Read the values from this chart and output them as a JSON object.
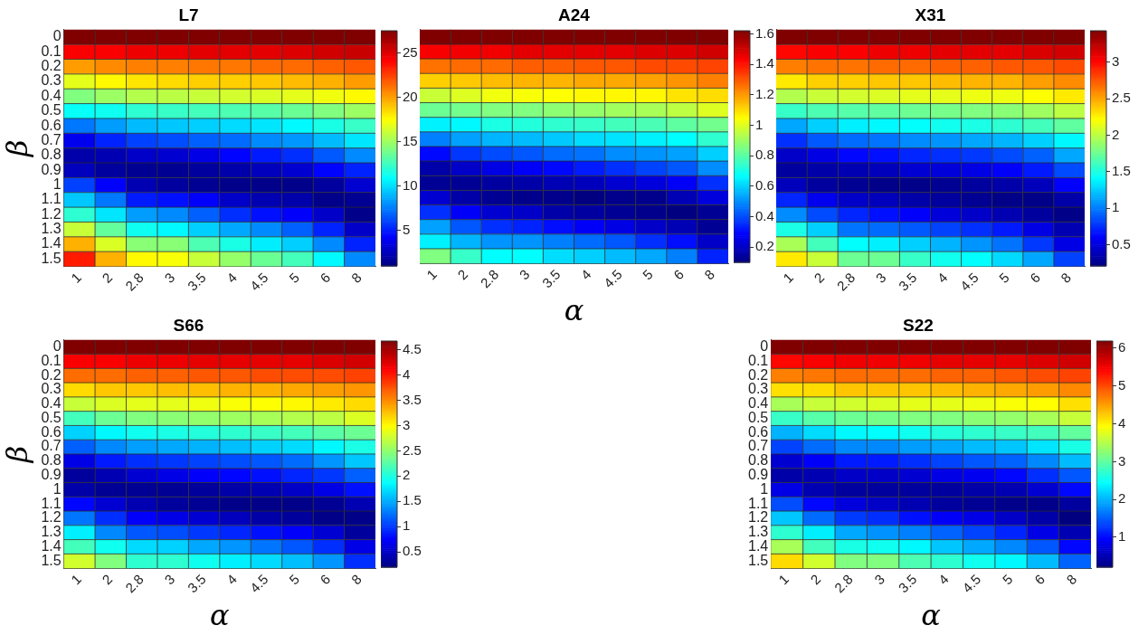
{
  "chart_data": [
    {
      "type": "heatmap",
      "title": "L7",
      "ylabel": "β",
      "categories": [
        "1",
        "2",
        "2.8",
        "3",
        "3.5",
        "4",
        "4.5",
        "5",
        "6",
        "8"
      ],
      "y_categories": [
        "0",
        "0.1",
        "0.2",
        "0.3",
        "0.4",
        "0.5",
        "0.6",
        "0.7",
        "0.8",
        "0.9",
        "1",
        "1.1",
        "1.2",
        "1.3",
        "1.4",
        "1.5"
      ],
      "clim": [
        1,
        27.5
      ],
      "cticks": [
        5,
        10,
        15,
        20,
        25
      ],
      "cells": [
        [
          27.5,
          27.5,
          27.5,
          27.5,
          27.5,
          27.5,
          27.5,
          27.5,
          27.5,
          27.5
        ],
        [
          24.3,
          24.3,
          24.6,
          24.6,
          24.9,
          24.9,
          24.9,
          25.1,
          25.4,
          25.6
        ],
        [
          20.1,
          20.6,
          20.9,
          20.9,
          21.1,
          21.1,
          21.4,
          21.4,
          21.7,
          21.9
        ],
        [
          16.9,
          17.7,
          18.2,
          18.5,
          18.8,
          18.8,
          19.0,
          19.3,
          19.6,
          20.1
        ],
        [
          14.3,
          15.0,
          15.6,
          15.8,
          16.1,
          16.4,
          16.6,
          16.9,
          17.2,
          17.7
        ],
        [
          11.1,
          11.3,
          12.1,
          12.4,
          12.7,
          12.9,
          13.2,
          13.7,
          14.3,
          15.0
        ],
        [
          7.4,
          8.4,
          9.2,
          9.5,
          9.7,
          10.0,
          10.3,
          10.8,
          11.6,
          12.4
        ],
        [
          3.9,
          5.2,
          6.0,
          6.3,
          6.8,
          7.1,
          7.9,
          8.2,
          9.2,
          10.3
        ],
        [
          2.1,
          2.3,
          2.9,
          3.1,
          3.7,
          4.4,
          5.0,
          5.5,
          6.6,
          7.9
        ],
        [
          2.6,
          1.8,
          1.5,
          1.5,
          1.8,
          2.1,
          2.6,
          3.1,
          4.4,
          5.2
        ],
        [
          6.0,
          4.2,
          2.3,
          1.8,
          1.5,
          1.3,
          1.3,
          1.3,
          1.8,
          3.1
        ],
        [
          9.5,
          7.4,
          5.0,
          4.7,
          4.2,
          2.9,
          2.3,
          2.1,
          1.3,
          1.5
        ],
        [
          12.1,
          10.3,
          8.4,
          7.9,
          6.8,
          5.5,
          4.7,
          4.2,
          2.9,
          1.3
        ],
        [
          16.1,
          13.5,
          11.3,
          10.8,
          9.7,
          8.7,
          7.9,
          6.8,
          5.2,
          2.9
        ],
        [
          19.6,
          16.6,
          14.5,
          14.5,
          12.9,
          11.6,
          10.5,
          9.7,
          7.9,
          5.2
        ],
        [
          23.5,
          19.6,
          17.7,
          17.4,
          16.1,
          14.8,
          13.7,
          12.7,
          10.8,
          7.9
        ]
      ]
    },
    {
      "type": "heatmap",
      "title": "A24",
      "xlabel": "α",
      "tick_labels": "x",
      "categories": [
        "1",
        "2",
        "2.8",
        "3",
        "3.5",
        "4",
        "4.5",
        "5",
        "6",
        "8"
      ],
      "y_categories": [
        "0",
        "0.1",
        "0.2",
        "0.3",
        "0.4",
        "0.5",
        "0.6",
        "0.7",
        "0.8",
        "0.9",
        "1",
        "1.1",
        "1.2",
        "1.3",
        "1.4",
        "1.5"
      ],
      "clim": [
        0.1,
        1.62
      ],
      "cticks": [
        0.2,
        0.4,
        0.6,
        0.8,
        1,
        1.2,
        1.4,
        1.6
      ],
      "cells": [
        [
          1.62,
          1.62,
          1.62,
          1.62,
          1.62,
          1.62,
          1.62,
          1.62,
          1.62,
          1.62
        ],
        [
          1.44,
          1.45,
          1.45,
          1.47,
          1.47,
          1.47,
          1.47,
          1.48,
          1.48,
          1.5
        ],
        [
          1.26,
          1.27,
          1.27,
          1.29,
          1.29,
          1.3,
          1.3,
          1.32,
          1.32,
          1.33
        ],
        [
          1.12,
          1.13,
          1.15,
          1.16,
          1.16,
          1.18,
          1.18,
          1.19,
          1.21,
          1.24
        ],
        [
          0.97,
          1.0,
          1.03,
          1.04,
          1.05,
          1.06,
          1.06,
          1.06,
          1.09,
          1.1
        ],
        [
          0.83,
          0.84,
          0.86,
          0.86,
          0.88,
          0.89,
          0.91,
          0.92,
          0.95,
          1.0
        ],
        [
          0.65,
          0.66,
          0.71,
          0.72,
          0.74,
          0.75,
          0.77,
          0.78,
          0.81,
          0.84
        ],
        [
          0.48,
          0.53,
          0.56,
          0.57,
          0.59,
          0.62,
          0.63,
          0.65,
          0.67,
          0.74
        ],
        [
          0.3,
          0.37,
          0.4,
          0.42,
          0.45,
          0.46,
          0.5,
          0.51,
          0.53,
          0.6
        ],
        [
          0.16,
          0.21,
          0.25,
          0.28,
          0.3,
          0.33,
          0.36,
          0.39,
          0.42,
          0.5
        ],
        [
          0.13,
          0.13,
          0.15,
          0.16,
          0.18,
          0.19,
          0.22,
          0.24,
          0.28,
          0.36
        ],
        [
          0.22,
          0.16,
          0.13,
          0.12,
          0.12,
          0.1,
          0.12,
          0.12,
          0.18,
          0.24
        ],
        [
          0.36,
          0.28,
          0.22,
          0.21,
          0.16,
          0.15,
          0.13,
          0.12,
          0.1,
          0.13
        ],
        [
          0.53,
          0.42,
          0.36,
          0.34,
          0.31,
          0.28,
          0.25,
          0.21,
          0.18,
          0.13
        ],
        [
          0.65,
          0.56,
          0.51,
          0.51,
          0.48,
          0.45,
          0.42,
          0.36,
          0.31,
          0.21
        ],
        [
          0.86,
          0.75,
          0.67,
          0.67,
          0.62,
          0.6,
          0.57,
          0.54,
          0.48,
          0.34
        ]
      ]
    },
    {
      "type": "heatmap",
      "title": "X31",
      "tick_labels": "x",
      "categories": [
        "1",
        "2",
        "2.8",
        "3",
        "3.5",
        "4",
        "4.5",
        "5",
        "6",
        "8"
      ],
      "y_categories": [
        "0",
        "0.1",
        "0.2",
        "0.3",
        "0.4",
        "0.5",
        "0.6",
        "0.7",
        "0.8",
        "0.9",
        "1",
        "1.1",
        "1.2",
        "1.3",
        "1.4",
        "1.5"
      ],
      "clim": [
        0.21,
        3.43
      ],
      "cticks": [
        0.5,
        1,
        1.5,
        2,
        2.5,
        3
      ],
      "cells": [
        [
          3.43,
          3.43,
          3.43,
          3.43,
          3.43,
          3.43,
          3.43,
          3.43,
          3.43,
          3.43
        ],
        [
          3.01,
          3.04,
          3.04,
          3.08,
          3.08,
          3.11,
          3.11,
          3.11,
          3.14,
          3.17
        ],
        [
          2.63,
          2.66,
          2.66,
          2.69,
          2.69,
          2.72,
          2.72,
          2.75,
          2.75,
          2.79
        ],
        [
          2.29,
          2.37,
          2.37,
          2.4,
          2.4,
          2.43,
          2.46,
          2.46,
          2.53,
          2.59
        ],
        [
          1.98,
          2.05,
          2.08,
          2.11,
          2.14,
          2.14,
          2.17,
          2.17,
          2.22,
          2.29
        ],
        [
          1.59,
          1.66,
          1.69,
          1.72,
          1.76,
          1.79,
          1.82,
          1.85,
          1.92,
          2.01
        ],
        [
          1.14,
          1.27,
          1.37,
          1.4,
          1.42,
          1.47,
          1.5,
          1.56,
          1.63,
          1.72
        ],
        [
          0.76,
          0.89,
          0.95,
          0.98,
          1.05,
          1.08,
          1.14,
          1.18,
          1.27,
          1.4
        ],
        [
          0.44,
          0.53,
          0.63,
          0.66,
          0.73,
          0.76,
          0.79,
          0.85,
          0.92,
          1.14
        ],
        [
          0.31,
          0.34,
          0.37,
          0.4,
          0.47,
          0.5,
          0.53,
          0.6,
          0.69,
          0.85
        ],
        [
          0.4,
          0.31,
          0.27,
          0.24,
          0.24,
          0.27,
          0.31,
          0.34,
          0.4,
          0.6
        ],
        [
          0.73,
          0.56,
          0.44,
          0.4,
          0.34,
          0.31,
          0.27,
          0.24,
          0.24,
          0.34
        ],
        [
          1.05,
          0.85,
          0.73,
          0.66,
          0.6,
          0.5,
          0.44,
          0.37,
          0.31,
          0.24
        ],
        [
          1.5,
          1.27,
          0.98,
          0.95,
          0.89,
          0.82,
          0.76,
          0.69,
          0.53,
          0.37
        ],
        [
          1.95,
          1.63,
          1.42,
          1.37,
          1.27,
          1.18,
          1.08,
          0.98,
          0.79,
          0.53
        ],
        [
          2.29,
          2.05,
          1.76,
          1.76,
          1.59,
          1.47,
          1.42,
          1.3,
          1.14,
          0.82
        ]
      ]
    },
    {
      "type": "heatmap",
      "title": "S66",
      "xlabel": "α",
      "ylabel": "β",
      "categories": [
        "1",
        "2",
        "2.8",
        "3",
        "3.5",
        "4",
        "4.5",
        "5",
        "6",
        "8"
      ],
      "y_categories": [
        "0",
        "0.1",
        "0.2",
        "0.3",
        "0.4",
        "0.5",
        "0.6",
        "0.7",
        "0.8",
        "0.9",
        "1",
        "1.1",
        "1.2",
        "1.3",
        "1.4",
        "1.5"
      ],
      "clim": [
        0.2,
        4.67
      ],
      "cticks": [
        0.5,
        1,
        1.5,
        2,
        2.5,
        3,
        3.5,
        4,
        4.5
      ],
      "cells": [
        [
          4.67,
          4.67,
          4.67,
          4.67,
          4.67,
          4.67,
          4.67,
          4.67,
          4.67,
          4.67
        ],
        [
          4.13,
          4.13,
          4.18,
          4.18,
          4.22,
          4.22,
          4.22,
          4.22,
          4.27,
          4.31
        ],
        [
          3.64,
          3.64,
          3.69,
          3.69,
          3.73,
          3.73,
          3.78,
          3.78,
          3.78,
          3.82
        ],
        [
          3.15,
          3.24,
          3.24,
          3.28,
          3.28,
          3.33,
          3.33,
          3.37,
          3.42,
          3.46
        ],
        [
          2.75,
          2.84,
          2.88,
          2.88,
          2.93,
          2.97,
          2.99,
          3.02,
          3.08,
          3.15
        ],
        [
          2.17,
          2.35,
          2.44,
          2.48,
          2.52,
          2.57,
          2.61,
          2.66,
          2.7,
          2.84
        ],
        [
          1.68,
          1.85,
          1.94,
          1.99,
          2.03,
          2.08,
          2.12,
          2.17,
          2.26,
          2.35
        ],
        [
          1.18,
          1.36,
          1.45,
          1.5,
          1.54,
          1.59,
          1.68,
          1.72,
          1.85,
          1.99
        ],
        [
          0.65,
          0.87,
          0.96,
          1.0,
          1.05,
          1.09,
          1.14,
          1.23,
          1.41,
          1.63
        ],
        [
          0.33,
          0.42,
          0.56,
          0.65,
          0.74,
          0.78,
          0.83,
          0.92,
          1.0,
          1.18
        ],
        [
          0.38,
          0.29,
          0.29,
          0.29,
          0.33,
          0.38,
          0.42,
          0.51,
          0.65,
          0.83
        ],
        [
          0.78,
          0.56,
          0.42,
          0.33,
          0.29,
          0.24,
          0.24,
          0.24,
          0.29,
          0.42
        ],
        [
          1.27,
          0.96,
          0.74,
          0.65,
          0.56,
          0.47,
          0.38,
          0.33,
          0.24,
          0.24
        ],
        [
          1.81,
          1.36,
          1.14,
          1.09,
          1.0,
          0.92,
          0.83,
          0.74,
          0.56,
          0.33
        ],
        [
          2.17,
          1.94,
          1.72,
          1.68,
          1.5,
          1.41,
          1.27,
          1.14,
          0.96,
          0.65
        ],
        [
          2.79,
          2.44,
          2.08,
          2.08,
          1.94,
          1.81,
          1.72,
          1.59,
          1.41,
          0.96
        ]
      ]
    },
    {
      "type": "heatmap",
      "title": "S22",
      "xlabel": "α",
      "categories": [
        "1",
        "2",
        "2.8",
        "3",
        "3.5",
        "4",
        "4.5",
        "5",
        "6",
        "8"
      ],
      "y_categories": [
        "0",
        "0.1",
        "0.2",
        "0.3",
        "0.4",
        "0.5",
        "0.6",
        "0.7",
        "0.8",
        "0.9",
        "1",
        "1.1",
        "1.2",
        "1.3",
        "1.4",
        "1.5"
      ],
      "clim": [
        0.21,
        6.19
      ],
      "cticks": [
        1,
        2,
        3,
        4,
        5,
        6
      ],
      "cells": [
        [
          6.19,
          6.19,
          6.19,
          6.19,
          6.19,
          6.19,
          6.19,
          6.19,
          6.19,
          6.19
        ],
        [
          5.41,
          5.47,
          5.53,
          5.53,
          5.53,
          5.59,
          5.59,
          5.59,
          5.65,
          5.71
        ],
        [
          4.7,
          4.75,
          4.81,
          4.81,
          4.81,
          4.87,
          4.87,
          4.93,
          4.99,
          5.05
        ],
        [
          4.13,
          4.16,
          4.28,
          4.28,
          4.28,
          4.34,
          4.4,
          4.46,
          4.52,
          4.64
        ],
        [
          3.44,
          3.62,
          3.68,
          3.74,
          3.8,
          3.8,
          3.86,
          3.92,
          3.95,
          4.13
        ],
        [
          2.78,
          2.96,
          3.08,
          3.14,
          3.2,
          3.2,
          3.26,
          3.32,
          3.44,
          3.62
        ],
        [
          2.0,
          2.24,
          2.42,
          2.45,
          2.54,
          2.66,
          2.72,
          2.78,
          2.84,
          3.02
        ],
        [
          1.35,
          1.59,
          1.76,
          1.76,
          1.88,
          1.94,
          2.06,
          2.12,
          2.3,
          2.6
        ],
        [
          0.69,
          0.93,
          1.11,
          1.11,
          1.23,
          1.35,
          1.47,
          1.53,
          1.76,
          2.06
        ],
        [
          0.45,
          0.51,
          0.63,
          0.63,
          0.69,
          0.81,
          0.87,
          0.99,
          1.23,
          1.47
        ],
        [
          0.81,
          0.51,
          0.39,
          0.39,
          0.39,
          0.39,
          0.45,
          0.51,
          0.69,
          0.99
        ],
        [
          1.41,
          0.99,
          0.75,
          0.63,
          0.51,
          0.39,
          0.33,
          0.27,
          0.27,
          0.39
        ],
        [
          2.12,
          1.59,
          1.29,
          1.23,
          1.05,
          0.93,
          0.81,
          0.63,
          0.45,
          0.21
        ],
        [
          2.72,
          2.36,
          1.94,
          1.82,
          1.71,
          1.53,
          1.35,
          1.17,
          0.81,
          0.51
        ],
        [
          3.44,
          2.84,
          2.6,
          2.54,
          2.42,
          2.12,
          1.94,
          1.76,
          1.47,
          0.99
        ],
        [
          4.16,
          3.68,
          3.2,
          3.2,
          2.9,
          2.72,
          2.54,
          2.42,
          2.06,
          1.53
        ]
      ]
    }
  ]
}
